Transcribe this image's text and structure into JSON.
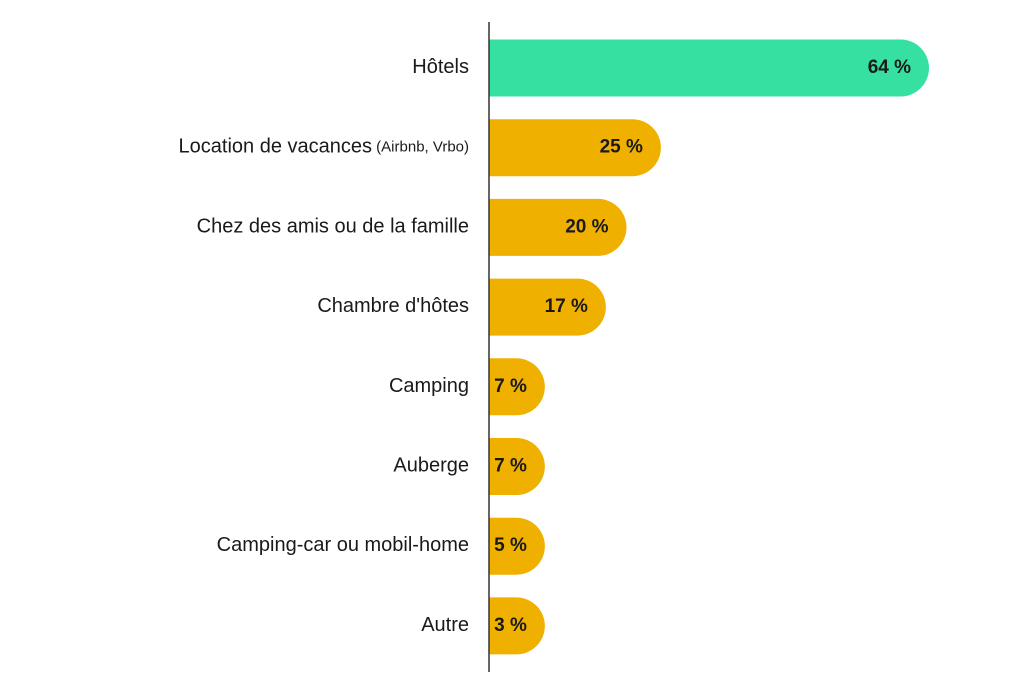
{
  "chart_data": {
    "type": "bar",
    "orientation": "horizontal",
    "categories": [
      {
        "label": "Hôtels",
        "sub": ""
      },
      {
        "label": "Location de vacances",
        "sub": "(Airbnb, Vrbo)"
      },
      {
        "label": "Chez des amis ou de la famille",
        "sub": ""
      },
      {
        "label": "Chambre d'hôtes",
        "sub": ""
      },
      {
        "label": "Camping",
        "sub": ""
      },
      {
        "label": "Auberge",
        "sub": ""
      },
      {
        "label": "Camping-car ou mobil-home",
        "sub": ""
      },
      {
        "label": "Autre",
        "sub": ""
      }
    ],
    "values": [
      64,
      25,
      20,
      17,
      7,
      7,
      5,
      3
    ],
    "value_labels": [
      "64 %",
      "25 %",
      "20 %",
      "17 %",
      "7 %",
      "7 %",
      "5 %",
      "3 %"
    ],
    "highlight_index": 0,
    "colors": {
      "highlight": "#35e0a1",
      "default": "#f0b000",
      "axis": "#333333",
      "text": "#1a1a1a"
    },
    "xlim": [
      0,
      64
    ],
    "grid": false,
    "legend": "none"
  }
}
